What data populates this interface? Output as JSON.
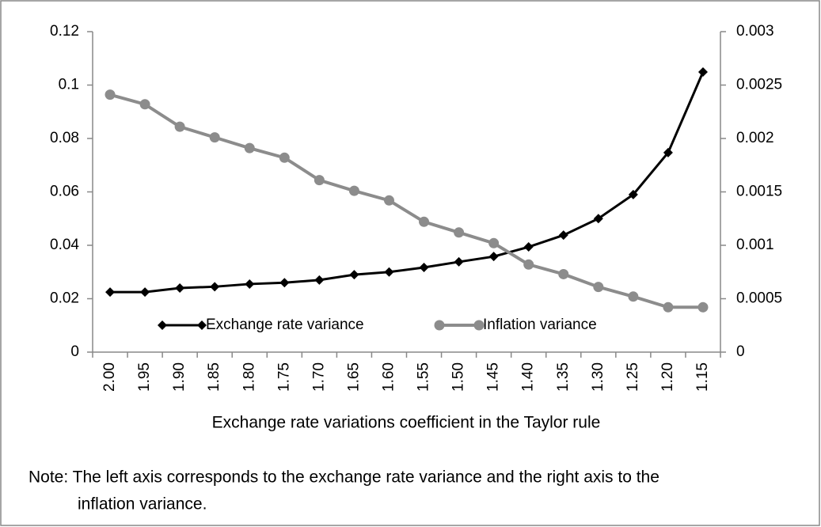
{
  "chart_data": {
    "type": "line",
    "x_label": "Exchange rate variations coefficient in the Taylor rule",
    "categories": [
      "2.00",
      "1.95",
      "1.90",
      "1.85",
      "1.80",
      "1.75",
      "1.70",
      "1.65",
      "1.60",
      "1.55",
      "1.50",
      "1.45",
      "1.40",
      "1.35",
      "1.30",
      "1.25",
      "1.20",
      "1.15"
    ],
    "series": [
      {
        "name": "Exchange rate variance",
        "color": "#000000",
        "marker": "diamond",
        "values": [
          0.0225,
          0.0225,
          0.024,
          0.0245,
          0.0255,
          0.026,
          0.027,
          0.029,
          0.03,
          0.0317,
          0.0338,
          0.0358,
          0.0394,
          0.0438,
          0.05,
          0.059,
          0.0747,
          0.1049
        ]
      },
      {
        "name": "Inflation variance",
        "color": "#8c8c8c",
        "marker": "circle",
        "axis": "y2",
        "values": [
          0.00241,
          0.00232,
          0.00211,
          0.00201,
          0.00191,
          0.00182,
          0.00161,
          0.00151,
          0.00142,
          0.00122,
          0.00112,
          0.00102,
          0.00082,
          0.00073,
          0.00061,
          0.00052,
          0.00042,
          0.00042
        ]
      }
    ],
    "ylim": [
      0,
      0.12
    ],
    "yticks": [
      0,
      0.02,
      0.04,
      0.06,
      0.08,
      0.1,
      0.12
    ],
    "y2lim": [
      0,
      0.003
    ],
    "y2ticks": [
      0,
      0.0005,
      0.001,
      0.0015,
      0.002,
      0.0025,
      0.003
    ],
    "legend_position": "lower-left",
    "note_lines": [
      "Note: The left axis corresponds to the exchange rate variance and the right axis to the",
      "inflation variance."
    ]
  }
}
